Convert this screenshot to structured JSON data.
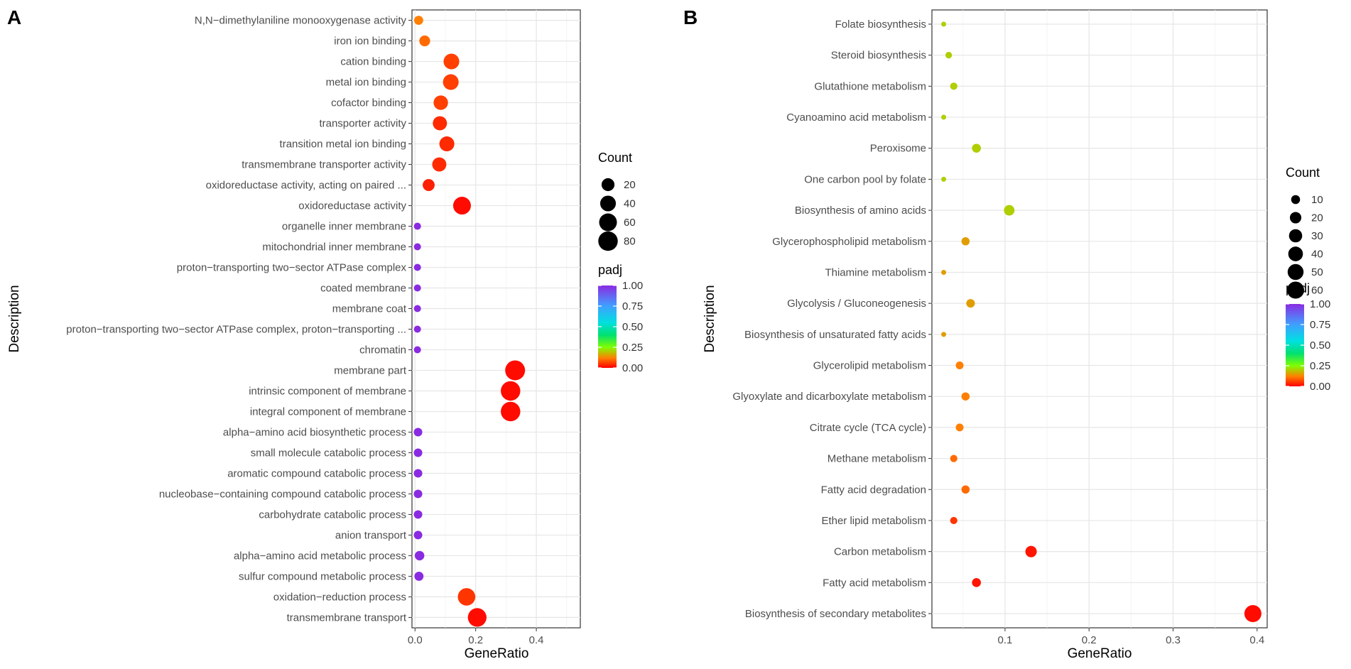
{
  "panels": [
    {
      "label": "A",
      "chart_data": {
        "type": "scatter",
        "subtype": "dot-plot",
        "xlabel": "GeneRatio",
        "ylabel": "Description",
        "xlim": [
          -0.01,
          0.545
        ],
        "xticks": [
          0.0,
          0.2,
          0.4
        ],
        "xtick_labels": [
          "0.0",
          "0.2",
          "0.4"
        ],
        "grid": true,
        "categories": [
          "N,N−dimethylaniline monooxygenase activity",
          "iron ion binding",
          "cation binding",
          "metal ion binding",
          "cofactor binding",
          "transporter activity",
          "transition metal ion binding",
          "transmembrane transporter activity",
          "oxidoreductase activity, acting on paired ...",
          "oxidoreductase activity",
          "organelle inner membrane",
          "mitochondrial inner membrane",
          "proton−transporting two−sector ATPase complex",
          "coated membrane",
          "membrane coat",
          "proton−transporting two−sector ATPase complex, proton−transporting ...",
          "chromatin",
          "membrane part",
          "intrinsic component of membrane",
          "integral component of membrane",
          "alpha−amino acid biosynthetic process",
          "small molecule catabolic process",
          "aromatic compound catabolic process",
          "nucleobase−containing compound catabolic process",
          "carbohydrate catabolic process",
          "anion transport",
          "alpha−amino acid metabolic process",
          "sulfur compound metabolic process",
          "oxidation−reduction process",
          "transmembrane transport"
        ],
        "gene_ratio": [
          0.012,
          0.032,
          0.12,
          0.118,
          0.085,
          0.082,
          0.105,
          0.08,
          0.045,
          0.155,
          0.008,
          0.008,
          0.008,
          0.008,
          0.008,
          0.008,
          0.008,
          0.33,
          0.315,
          0.315,
          0.01,
          0.01,
          0.01,
          0.01,
          0.01,
          0.01,
          0.015,
          0.013,
          0.17,
          0.205
        ],
        "count": [
          5,
          10,
          40,
          40,
          30,
          28,
          34,
          28,
          15,
          60,
          3,
          3,
          3,
          3,
          3,
          3,
          3,
          85,
          80,
          80,
          4,
          4,
          4,
          4,
          4,
          4,
          6,
          5,
          57,
          70
        ],
        "padj": [
          0.12,
          0.1,
          0.06,
          0.06,
          0.06,
          0.04,
          0.04,
          0.04,
          0.03,
          0.01,
          1.0,
          1.0,
          1.0,
          1.0,
          1.0,
          1.0,
          1.0,
          0.01,
          0.01,
          0.01,
          1.0,
          1.0,
          1.0,
          1.0,
          1.0,
          1.0,
          1.0,
          1.0,
          0.05,
          0.01
        ],
        "size_legend": {
          "title": "Count",
          "values": [
            20,
            40,
            60,
            80
          ],
          "labels": [
            "20",
            "40",
            "60",
            "80"
          ]
        },
        "color_legend": {
          "title": "padj",
          "ticks": [
            1.0,
            0.75,
            0.5,
            0.25,
            0.0
          ],
          "labels": [
            "1.00",
            "0.75",
            "0.50",
            "0.25",
            "0.00"
          ],
          "low_color": "#ff0000",
          "high_color": "#8a2be2"
        }
      }
    },
    {
      "label": "B",
      "chart_data": {
        "type": "scatter",
        "subtype": "dot-plot",
        "xlabel": "GeneRatio",
        "ylabel": "Description",
        "xlim": [
          0.013,
          0.412
        ],
        "xticks": [
          0.1,
          0.2,
          0.3,
          0.4
        ],
        "xtick_labels": [
          "0.1",
          "0.2",
          "0.3",
          "0.4"
        ],
        "grid": true,
        "categories": [
          "Folate biosynthesis",
          "Steroid biosynthesis",
          "Glutathione metabolism",
          "Cyanoamino acid metabolism",
          "Peroxisome",
          "One carbon pool by folate",
          "Biosynthesis of amino acids",
          "Glycerophospholipid metabolism",
          "Thiamine metabolism",
          "Glycolysis / Gluconeogenesis",
          "Biosynthesis of unsaturated fatty acids",
          "Glycerolipid metabolism",
          "Glyoxylate and dicarboxylate metabolism",
          "Citrate cycle (TCA cycle)",
          "Methane metabolism",
          "Fatty acid degradation",
          "Ether lipid metabolism",
          "Carbon metabolism",
          "Fatty acid metabolism",
          "Biosynthesis of secondary metabolites"
        ],
        "gene_ratio": [
          0.027,
          0.033,
          0.039,
          0.027,
          0.066,
          0.027,
          0.105,
          0.053,
          0.027,
          0.059,
          0.027,
          0.046,
          0.053,
          0.046,
          0.039,
          0.053,
          0.039,
          0.131,
          0.066,
          0.395
        ],
        "count": [
          4,
          5,
          6,
          4,
          10,
          4,
          16,
          8,
          4,
          9,
          4,
          7,
          8,
          7,
          6,
          8,
          6,
          20,
          10,
          60
        ],
        "padj": [
          0.2,
          0.2,
          0.2,
          0.2,
          0.2,
          0.2,
          0.2,
          0.15,
          0.15,
          0.15,
          0.15,
          0.12,
          0.12,
          0.12,
          0.1,
          0.1,
          0.05,
          0.02,
          0.02,
          0.01
        ],
        "size_legend": {
          "title": "Count",
          "values": [
            10,
            20,
            30,
            40,
            50,
            60
          ],
          "labels": [
            "10",
            "20",
            "30",
            "40",
            "50",
            "60"
          ]
        },
        "color_legend": {
          "title": "padj",
          "ticks": [
            1.0,
            0.75,
            0.5,
            0.25,
            0.0
          ],
          "labels": [
            "1.00",
            "0.75",
            "0.50",
            "0.25",
            "0.00"
          ],
          "low_color": "#ff0000",
          "high_color": "#8a2be2"
        }
      }
    }
  ]
}
